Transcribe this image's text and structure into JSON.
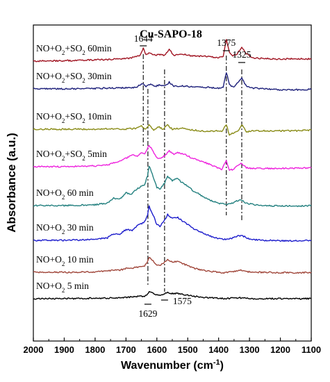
{
  "chart_data": {
    "type": "line",
    "title": "Cu-SAPO-18",
    "xlabel": "Wavenumber (cm-1)",
    "ylabel": "Absorbance (a.u.)",
    "xlim": [
      2000,
      1100
    ],
    "x_ticks": [
      "2000",
      "1900",
      "1800",
      "1700",
      "1600",
      "1500",
      "1400",
      "1300",
      "1200",
      "1100"
    ],
    "y_ticks": "none",
    "grid": false,
    "legend": "inline labels at left of each trace",
    "series": [
      {
        "name": "NO+O2+SO2 60min",
        "color": "#a01422",
        "offset": 7,
        "points": [
          [
            2000,
            0.0
          ],
          [
            1900,
            0.01
          ],
          [
            1800,
            0.03
          ],
          [
            1750,
            0.04
          ],
          [
            1700,
            0.06
          ],
          [
            1670,
            0.1
          ],
          [
            1655,
            0.14
          ],
          [
            1644,
            0.3
          ],
          [
            1635,
            0.16
          ],
          [
            1620,
            0.2
          ],
          [
            1610,
            0.14
          ],
          [
            1590,
            0.16
          ],
          [
            1575,
            0.14
          ],
          [
            1560,
            0.28
          ],
          [
            1545,
            0.14
          ],
          [
            1520,
            0.18
          ],
          [
            1500,
            0.14
          ],
          [
            1480,
            0.12
          ],
          [
            1450,
            0.12
          ],
          [
            1420,
            0.1
          ],
          [
            1400,
            0.08
          ],
          [
            1385,
            0.1
          ],
          [
            1375,
            0.52
          ],
          [
            1365,
            0.2
          ],
          [
            1355,
            0.12
          ],
          [
            1340,
            0.18
          ],
          [
            1325,
            0.34
          ],
          [
            1310,
            0.18
          ],
          [
            1290,
            0.08
          ],
          [
            1250,
            0.06
          ],
          [
            1200,
            0.05
          ],
          [
            1150,
            0.06
          ],
          [
            1100,
            0.05
          ]
        ]
      },
      {
        "name": "NO+O2+SO2 30min",
        "color": "#1c1f7a",
        "offset": 6,
        "points": [
          [
            2000,
            0.0
          ],
          [
            1900,
            0.0
          ],
          [
            1800,
            0.01
          ],
          [
            1750,
            0.02
          ],
          [
            1700,
            0.03
          ],
          [
            1670,
            0.03
          ],
          [
            1644,
            0.14
          ],
          [
            1635,
            0.06
          ],
          [
            1620,
            0.12
          ],
          [
            1605,
            0.06
          ],
          [
            1590,
            0.1
          ],
          [
            1575,
            0.06
          ],
          [
            1560,
            0.16
          ],
          [
            1545,
            0.06
          ],
          [
            1520,
            0.08
          ],
          [
            1500,
            0.06
          ],
          [
            1450,
            0.04
          ],
          [
            1400,
            0.02
          ],
          [
            1385,
            0.04
          ],
          [
            1375,
            0.4
          ],
          [
            1365,
            0.1
          ],
          [
            1350,
            0.04
          ],
          [
            1325,
            0.26
          ],
          [
            1310,
            0.06
          ],
          [
            1290,
            0.02
          ],
          [
            1250,
            0.0
          ],
          [
            1200,
            -0.02
          ],
          [
            1150,
            -0.02
          ],
          [
            1100,
            -0.01
          ]
        ]
      },
      {
        "name": "NO+O2+SO2 10min",
        "color": "#8a8c18",
        "offset": 5,
        "points": [
          [
            2000,
            0.0
          ],
          [
            1900,
            0.0
          ],
          [
            1800,
            0.0
          ],
          [
            1750,
            0.01
          ],
          [
            1700,
            0.0
          ],
          [
            1670,
            0.02
          ],
          [
            1650,
            0.08
          ],
          [
            1640,
            0.0
          ],
          [
            1625,
            0.1
          ],
          [
            1610,
            -0.02
          ],
          [
            1595,
            0.06
          ],
          [
            1580,
            0.0
          ],
          [
            1565,
            0.1
          ],
          [
            1550,
            0.0
          ],
          [
            1520,
            0.02
          ],
          [
            1480,
            -0.02
          ],
          [
            1440,
            -0.06
          ],
          [
            1410,
            -0.04
          ],
          [
            1390,
            -0.06
          ],
          [
            1375,
            0.12
          ],
          [
            1365,
            -0.14
          ],
          [
            1350,
            -0.08
          ],
          [
            1335,
            -0.04
          ],
          [
            1325,
            0.1
          ],
          [
            1310,
            -0.06
          ],
          [
            1290,
            -0.04
          ],
          [
            1250,
            -0.04
          ],
          [
            1200,
            -0.04
          ],
          [
            1150,
            -0.04
          ],
          [
            1100,
            -0.02
          ]
        ]
      },
      {
        "name": "NO+O2+SO2 5min",
        "color": "#ee22dd",
        "offset": 4,
        "points": [
          [
            2000,
            0.0
          ],
          [
            1900,
            0.0
          ],
          [
            1800,
            0.02
          ],
          [
            1760,
            0.04
          ],
          [
            1740,
            0.1
          ],
          [
            1720,
            0.14
          ],
          [
            1700,
            0.2
          ],
          [
            1680,
            0.28
          ],
          [
            1660,
            0.26
          ],
          [
            1650,
            0.34
          ],
          [
            1640,
            0.3
          ],
          [
            1625,
            0.52
          ],
          [
            1615,
            0.4
          ],
          [
            1600,
            0.22
          ],
          [
            1590,
            0.2
          ],
          [
            1575,
            0.26
          ],
          [
            1560,
            0.38
          ],
          [
            1545,
            0.3
          ],
          [
            1530,
            0.34
          ],
          [
            1510,
            0.3
          ],
          [
            1490,
            0.22
          ],
          [
            1470,
            0.16
          ],
          [
            1450,
            0.12
          ],
          [
            1430,
            0.06
          ],
          [
            1410,
            0.0
          ],
          [
            1390,
            -0.06
          ],
          [
            1375,
            0.14
          ],
          [
            1365,
            -0.08
          ],
          [
            1350,
            -0.06
          ],
          [
            1340,
            0.02
          ],
          [
            1325,
            0.08
          ],
          [
            1310,
            -0.02
          ],
          [
            1290,
            -0.04
          ],
          [
            1250,
            -0.04
          ],
          [
            1200,
            -0.04
          ],
          [
            1150,
            -0.04
          ],
          [
            1100,
            -0.03
          ]
        ]
      },
      {
        "name": "NO+O2 60 min",
        "color": "#23807f",
        "offset": 3,
        "points": [
          [
            2000,
            0.0
          ],
          [
            1900,
            0.0
          ],
          [
            1800,
            0.02
          ],
          [
            1760,
            0.06
          ],
          [
            1740,
            0.18
          ],
          [
            1720,
            0.16
          ],
          [
            1700,
            0.3
          ],
          [
            1680,
            0.28
          ],
          [
            1665,
            0.4
          ],
          [
            1655,
            0.44
          ],
          [
            1640,
            0.5
          ],
          [
            1630,
            0.72
          ],
          [
            1625,
            0.96
          ],
          [
            1615,
            0.76
          ],
          [
            1600,
            0.44
          ],
          [
            1590,
            0.4
          ],
          [
            1575,
            0.54
          ],
          [
            1565,
            0.7
          ],
          [
            1550,
            0.6
          ],
          [
            1535,
            0.66
          ],
          [
            1520,
            0.56
          ],
          [
            1500,
            0.46
          ],
          [
            1480,
            0.34
          ],
          [
            1460,
            0.26
          ],
          [
            1440,
            0.18
          ],
          [
            1420,
            0.1
          ],
          [
            1400,
            0.06
          ],
          [
            1385,
            0.04
          ],
          [
            1375,
            0.02
          ],
          [
            1360,
            0.04
          ],
          [
            1345,
            0.1
          ],
          [
            1330,
            0.14
          ],
          [
            1315,
            0.08
          ],
          [
            1300,
            0.04
          ],
          [
            1280,
            0.02
          ],
          [
            1250,
            0.0
          ],
          [
            1200,
            -0.01
          ],
          [
            1150,
            -0.01
          ],
          [
            1100,
            0.0
          ]
        ]
      },
      {
        "name": "NO+O2 30 min",
        "color": "#1d1dcc",
        "offset": 2,
        "points": [
          [
            2000,
            0.0
          ],
          [
            1900,
            0.0
          ],
          [
            1800,
            0.02
          ],
          [
            1760,
            0.06
          ],
          [
            1740,
            0.16
          ],
          [
            1720,
            0.14
          ],
          [
            1700,
            0.26
          ],
          [
            1680,
            0.24
          ],
          [
            1665,
            0.34
          ],
          [
            1655,
            0.38
          ],
          [
            1640,
            0.44
          ],
          [
            1630,
            0.62
          ],
          [
            1625,
            0.82
          ],
          [
            1615,
            0.66
          ],
          [
            1600,
            0.38
          ],
          [
            1590,
            0.34
          ],
          [
            1575,
            0.48
          ],
          [
            1565,
            0.62
          ],
          [
            1550,
            0.52
          ],
          [
            1535,
            0.56
          ],
          [
            1520,
            0.48
          ],
          [
            1500,
            0.38
          ],
          [
            1480,
            0.28
          ],
          [
            1460,
            0.2
          ],
          [
            1440,
            0.14
          ],
          [
            1420,
            0.08
          ],
          [
            1400,
            0.04
          ],
          [
            1380,
            0.02
          ],
          [
            1360,
            0.04
          ],
          [
            1340,
            0.1
          ],
          [
            1325,
            0.12
          ],
          [
            1310,
            0.06
          ],
          [
            1290,
            0.02
          ],
          [
            1250,
            0.0
          ],
          [
            1200,
            -0.01
          ],
          [
            1150,
            -0.01
          ],
          [
            1100,
            0.0
          ]
        ]
      },
      {
        "name": "NO+O2 10 min",
        "color": "#a0463a",
        "offset": 1,
        "points": [
          [
            2000,
            0.0
          ],
          [
            1900,
            0.0
          ],
          [
            1800,
            0.01
          ],
          [
            1760,
            0.03
          ],
          [
            1740,
            0.06
          ],
          [
            1720,
            0.05
          ],
          [
            1700,
            0.09
          ],
          [
            1680,
            0.1
          ],
          [
            1665,
            0.12
          ],
          [
            1650,
            0.14
          ],
          [
            1640,
            0.16
          ],
          [
            1630,
            0.26
          ],
          [
            1625,
            0.36
          ],
          [
            1615,
            0.3
          ],
          [
            1600,
            0.18
          ],
          [
            1590,
            0.16
          ],
          [
            1575,
            0.24
          ],
          [
            1565,
            0.3
          ],
          [
            1550,
            0.24
          ],
          [
            1535,
            0.26
          ],
          [
            1520,
            0.22
          ],
          [
            1500,
            0.16
          ],
          [
            1480,
            0.1
          ],
          [
            1460,
            0.06
          ],
          [
            1440,
            0.03
          ],
          [
            1420,
            0.02
          ],
          [
            1400,
            0.0
          ],
          [
            1380,
            -0.01
          ],
          [
            1360,
            0.01
          ],
          [
            1340,
            0.04
          ],
          [
            1325,
            0.05
          ],
          [
            1310,
            0.02
          ],
          [
            1290,
            0.0
          ],
          [
            1250,
            0.0
          ],
          [
            1200,
            -0.01
          ],
          [
            1150,
            -0.01
          ],
          [
            1100,
            0.0
          ]
        ]
      },
      {
        "name": "NO+O2 5 min",
        "color": "#000000",
        "offset": 0,
        "points": [
          [
            2000,
            0.0
          ],
          [
            1900,
            0.0
          ],
          [
            1800,
            0.01
          ],
          [
            1760,
            0.01
          ],
          [
            1740,
            0.02
          ],
          [
            1720,
            0.02
          ],
          [
            1700,
            0.03
          ],
          [
            1680,
            0.04
          ],
          [
            1665,
            0.05
          ],
          [
            1650,
            0.05
          ],
          [
            1640,
            0.06
          ],
          [
            1630,
            0.1
          ],
          [
            1625,
            0.16
          ],
          [
            1615,
            0.14
          ],
          [
            1600,
            0.09
          ],
          [
            1590,
            0.07
          ],
          [
            1575,
            0.12
          ],
          [
            1565,
            0.14
          ],
          [
            1550,
            0.12
          ],
          [
            1535,
            0.13
          ],
          [
            1520,
            0.11
          ],
          [
            1500,
            0.08
          ],
          [
            1480,
            0.06
          ],
          [
            1460,
            0.04
          ],
          [
            1440,
            0.03
          ],
          [
            1420,
            0.02
          ],
          [
            1400,
            0.01
          ],
          [
            1380,
            0.0
          ],
          [
            1360,
            0.01
          ],
          [
            1340,
            0.02
          ],
          [
            1325,
            0.02
          ],
          [
            1310,
            0.01
          ],
          [
            1290,
            0.0
          ],
          [
            1250,
            0.0
          ],
          [
            1200,
            0.0
          ],
          [
            1150,
            0.0
          ],
          [
            1100,
            0.0
          ]
        ]
      }
    ],
    "annotations": [
      {
        "label": "1644",
        "x": 1644
      },
      {
        "label": "1629",
        "x": 1629
      },
      {
        "label": "1575",
        "x": 1575
      },
      {
        "label": "1375",
        "x": 1375
      },
      {
        "label": "1325",
        "x": 1325
      }
    ],
    "reference_lines": [
      1644,
      1629,
      1575,
      1375,
      1325
    ]
  }
}
